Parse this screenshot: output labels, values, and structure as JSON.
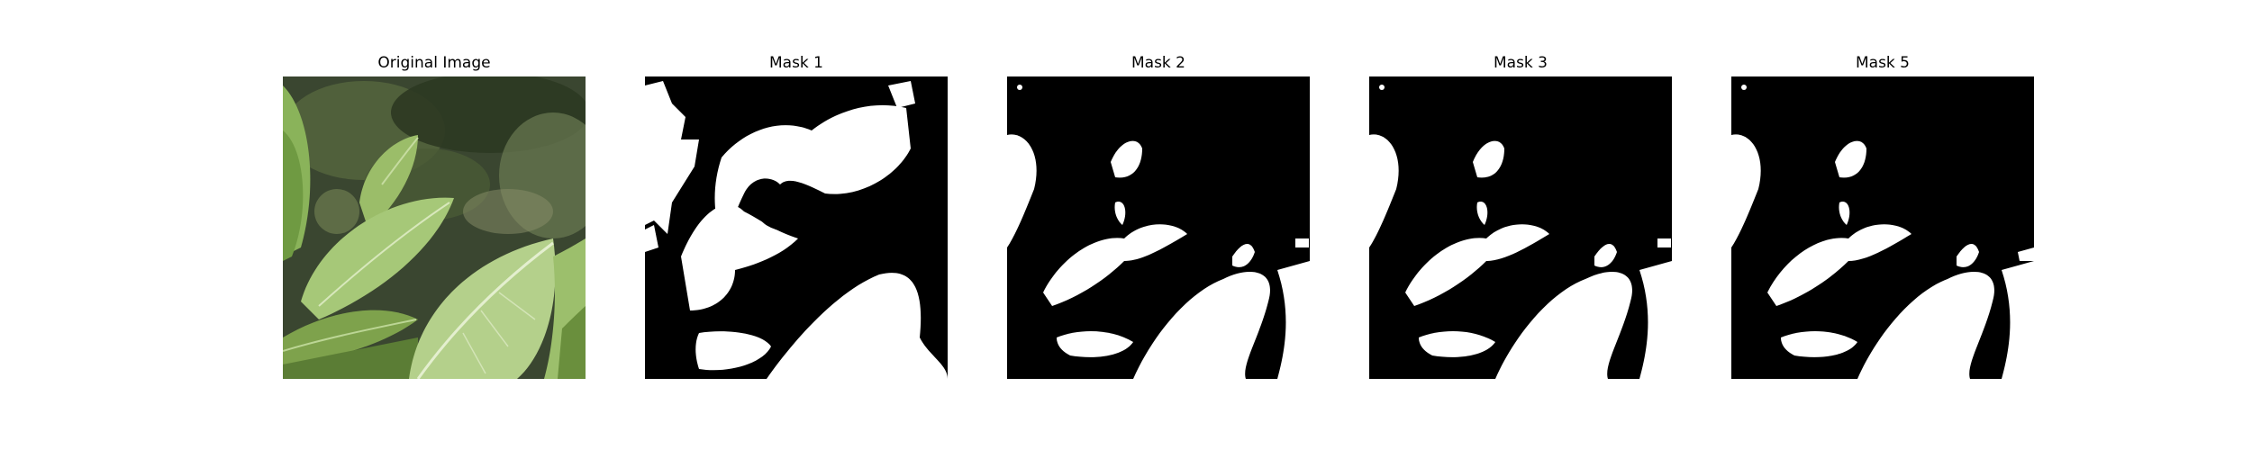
{
  "figure": {
    "panels": [
      {
        "title": "Original Image",
        "kind": "photo"
      },
      {
        "title": "Mask 1",
        "kind": "mask"
      },
      {
        "title": "Mask 2",
        "kind": "mask"
      },
      {
        "title": "Mask 3",
        "kind": "mask"
      },
      {
        "title": "Mask 5",
        "kind": "mask"
      }
    ],
    "colors": {
      "mask_background": "#000000",
      "mask_foreground": "#ffffff",
      "leaf_light": "#a9c77a",
      "leaf_mid": "#7aa04e",
      "leaf_dark": "#4c6e2c",
      "background_foliage": "#2f3b26"
    }
  }
}
